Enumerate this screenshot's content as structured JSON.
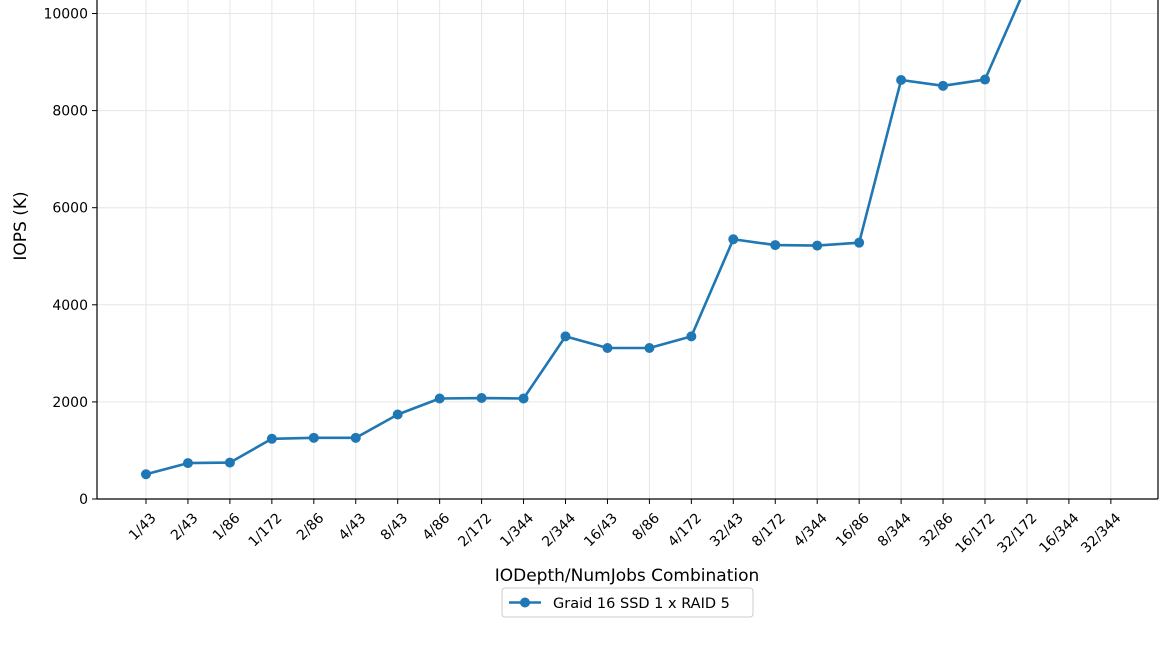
{
  "chart_data": {
    "type": "line",
    "title": "",
    "xlabel": "IODepth/NumJobs Combination",
    "ylabel": "IOPS (K)",
    "categories": [
      "1/43",
      "2/43",
      "1/86",
      "1/172",
      "2/86",
      "4/43",
      "8/43",
      "4/86",
      "2/172",
      "1/344",
      "2/344",
      "16/43",
      "8/86",
      "4/172",
      "32/43",
      "8/172",
      "4/344",
      "16/86",
      "8/344",
      "32/86",
      "16/172",
      "32/172",
      "16/344",
      "32/344"
    ],
    "yticks": [
      0,
      2000,
      4000,
      6000,
      8000,
      10000
    ],
    "ylim": [
      0,
      10300
    ],
    "grid": true,
    "legend_position": "bottom-center",
    "series": [
      {
        "name": "Graid 16 SSD 1 x RAID 5",
        "color": "#1f77b4",
        "marker": "circle",
        "values": [
          510,
          740,
          750,
          1240,
          1260,
          1260,
          1740,
          2070,
          2080,
          2070,
          3350,
          3110,
          3110,
          3350,
          5350,
          5230,
          5220,
          5280,
          8630,
          8510,
          8640,
          10600,
          null,
          null
        ]
      }
    ]
  }
}
